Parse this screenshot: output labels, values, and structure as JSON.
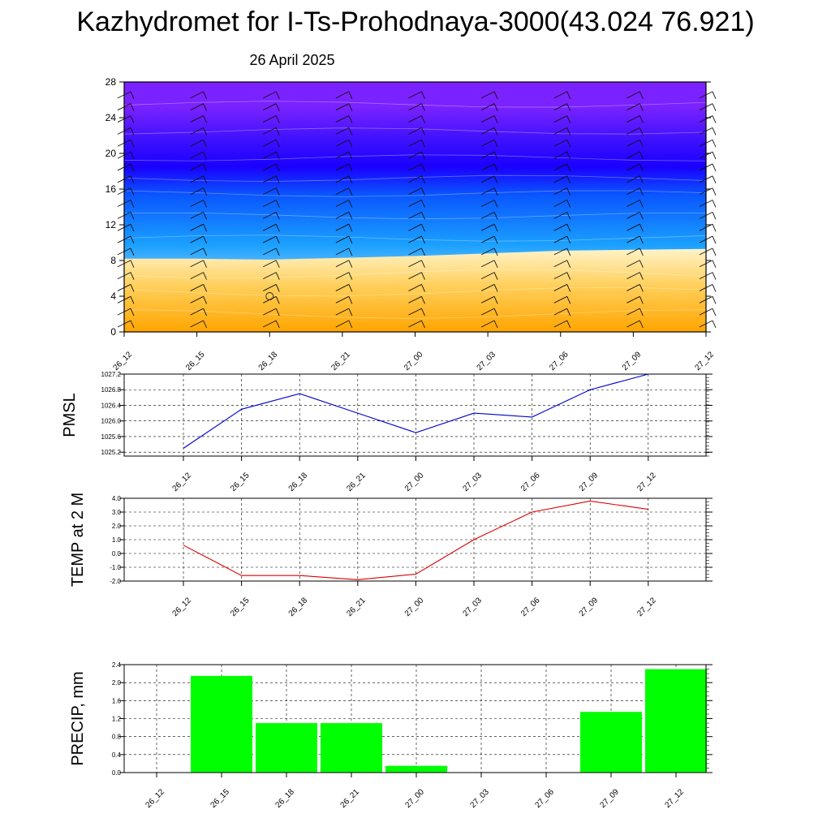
{
  "title": "Kazhydromet for I-Ts-Prohodnaya-3000(43.024 76.921)",
  "subtitle": "26 April 2025",
  "colors": {
    "pmsl_line": "#0000cc",
    "temp_line": "#dd0000",
    "precip_bar": "#00ff00",
    "warm": "#ffa500",
    "warm_light": "#fff3c8",
    "cool_light": "#e8f4ff",
    "cyan": "#1aa0ff",
    "blue": "#1a00ff",
    "purple": "#7a22ff"
  },
  "chart_data": [
    {
      "type": "heatmap",
      "x_categories": [
        "26_12",
        "26_15",
        "26_18",
        "26_21",
        "27_00",
        "27_03",
        "27_06",
        "27_09",
        "27_12"
      ],
      "y_ticks": [
        0,
        4,
        8,
        12,
        16,
        20,
        24,
        28
      ],
      "ylim": [
        0,
        28
      ],
      "freezing_level": [
        8.2,
        8.2,
        8.1,
        8.3,
        8.5,
        8.8,
        9.1,
        9.2,
        9.3
      ],
      "grid": false,
      "wind_barbs": true
    },
    {
      "type": "line",
      "ylabel": "PMSL",
      "categories": [
        "26_12",
        "26_15",
        "26_18",
        "26_21",
        "27_00",
        "27_03",
        "27_06",
        "27_09",
        "27_12"
      ],
      "values": [
        1025.3,
        1026.3,
        1026.7,
        1026.2,
        1025.7,
        1026.2,
        1026.1,
        1026.8,
        1027.2
      ],
      "y_ticks": [
        "1025.2",
        "1025.6",
        "1026.0",
        "1026.4",
        "1026.8",
        "1027.2"
      ],
      "ylim": [
        1025.1,
        1027.2
      ],
      "grid": true
    },
    {
      "type": "line",
      "ylabel": "TEMP at 2 M",
      "categories": [
        "26_12",
        "26_15",
        "26_18",
        "26_21",
        "27_00",
        "27_03",
        "27_06",
        "27_09",
        "27_12"
      ],
      "values": [
        0.6,
        -1.6,
        -1.6,
        -1.9,
        -1.5,
        1.0,
        3.0,
        3.8,
        3.2
      ],
      "y_ticks": [
        "-2.0",
        "-1.0",
        "0.0",
        "1.0",
        "2.0",
        "3.0",
        "4.0"
      ],
      "ylim": [
        -2.0,
        4.0
      ],
      "grid": true
    },
    {
      "type": "bar",
      "ylabel": "PRECIP, mm",
      "categories": [
        "26_12",
        "26_15",
        "26_18",
        "26_21",
        "27_00",
        "27_03",
        "27_06",
        "27_09",
        "27_12"
      ],
      "values": [
        0.0,
        2.15,
        1.1,
        1.1,
        0.15,
        0.0,
        0.0,
        1.35,
        2.3
      ],
      "y_ticks": [
        "0.0",
        "0.4",
        "0.8",
        "1.2",
        "1.6",
        "2.0",
        "2.4"
      ],
      "ylim": [
        0,
        2.4
      ],
      "grid": true
    }
  ]
}
